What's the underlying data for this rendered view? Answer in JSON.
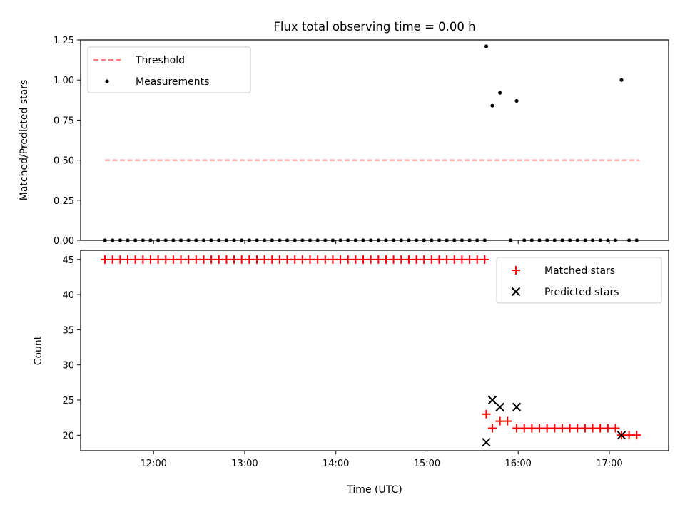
{
  "chart_data": [
    {
      "type": "scatter",
      "title": "Flux total observing time = 0.00 h",
      "ylabel": "Matched/Predicted stars",
      "xlabel": "",
      "xlim": [
        "11:12",
        "17:39"
      ],
      "ylim": [
        0,
        1.25
      ],
      "x_ticks": [
        "12:00",
        "13:00",
        "14:00",
        "15:00",
        "16:00",
        "17:00"
      ],
      "y_ticks": [
        "0.00",
        "0.25",
        "0.50",
        "0.75",
        "1.00",
        "1.25"
      ],
      "grid": false,
      "legend_position": "upper-left",
      "series": [
        {
          "name": "Threshold",
          "kind": "dashed-line",
          "color": "#ff7f7f",
          "x": [
            "11:28",
            "17:20"
          ],
          "y": [
            0.5,
            0.5
          ]
        },
        {
          "name": "Measurements",
          "kind": "points",
          "color": "#000000",
          "x": [
            "11:28",
            "11:33",
            "11:38",
            "11:43",
            "11:48",
            "11:53",
            "11:58",
            "12:03",
            "12:08",
            "12:13",
            "12:18",
            "12:23",
            "12:28",
            "12:33",
            "12:38",
            "12:43",
            "12:48",
            "12:53",
            "12:58",
            "13:03",
            "13:08",
            "13:13",
            "13:18",
            "13:23",
            "13:28",
            "13:33",
            "13:38",
            "13:43",
            "13:48",
            "13:53",
            "13:58",
            "14:03",
            "14:08",
            "14:13",
            "14:18",
            "14:23",
            "14:28",
            "14:33",
            "14:38",
            "14:43",
            "14:48",
            "14:53",
            "14:58",
            "15:03",
            "15:08",
            "15:13",
            "15:18",
            "15:23",
            "15:28",
            "15:33",
            "15:38",
            "15:39",
            "15:43",
            "15:48",
            "15:55",
            "15:59",
            "16:04",
            "16:09",
            "16:14",
            "16:19",
            "16:24",
            "16:29",
            "16:34",
            "16:39",
            "16:44",
            "16:49",
            "16:54",
            "16:59",
            "17:04",
            "17:08",
            "17:13",
            "17:18"
          ],
          "y": [
            0,
            0,
            0,
            0,
            0,
            0,
            0,
            0,
            0,
            0,
            0,
            0,
            0,
            0,
            0,
            0,
            0,
            0,
            0,
            0,
            0,
            0,
            0,
            0,
            0,
            0,
            0,
            0,
            0,
            0,
            0,
            0,
            0,
            0,
            0,
            0,
            0,
            0,
            0,
            0,
            0,
            0,
            0,
            0,
            0,
            0,
            0,
            0,
            0,
            0,
            0,
            1.21,
            0.84,
            0.92,
            0,
            0.87,
            0,
            0,
            0,
            0,
            0,
            0,
            0,
            0,
            0,
            0,
            0,
            0,
            0,
            1.0,
            0,
            0
          ]
        }
      ]
    },
    {
      "type": "scatter",
      "title": "",
      "xlabel": "Time (UTC)",
      "ylabel": "Count",
      "xlim": [
        "11:12",
        "17:39"
      ],
      "ylim": [
        17.8,
        46.3
      ],
      "x_ticks": [
        "12:00",
        "13:00",
        "14:00",
        "15:00",
        "16:00",
        "17:00"
      ],
      "y_ticks": [
        "20",
        "25",
        "30",
        "35",
        "40",
        "45"
      ],
      "grid": false,
      "legend_position": "upper-right",
      "series": [
        {
          "name": "Matched stars",
          "kind": "plus",
          "color": "#ff0000",
          "x": [
            "11:28",
            "11:33",
            "11:38",
            "11:43",
            "11:48",
            "11:53",
            "11:58",
            "12:03",
            "12:08",
            "12:13",
            "12:18",
            "12:23",
            "12:28",
            "12:33",
            "12:38",
            "12:43",
            "12:48",
            "12:53",
            "12:58",
            "13:03",
            "13:08",
            "13:13",
            "13:18",
            "13:23",
            "13:28",
            "13:33",
            "13:38",
            "13:43",
            "13:48",
            "13:53",
            "13:58",
            "14:03",
            "14:08",
            "14:13",
            "14:18",
            "14:23",
            "14:28",
            "14:33",
            "14:38",
            "14:43",
            "14:48",
            "14:53",
            "14:58",
            "15:03",
            "15:08",
            "15:13",
            "15:18",
            "15:23",
            "15:28",
            "15:33",
            "15:38",
            "15:39",
            "15:43",
            "15:48",
            "15:53",
            "15:59",
            "16:04",
            "16:09",
            "16:14",
            "16:19",
            "16:24",
            "16:29",
            "16:34",
            "16:39",
            "16:44",
            "16:49",
            "16:54",
            "16:59",
            "17:04",
            "17:08",
            "17:13",
            "17:18"
          ],
          "y": [
            45,
            45,
            45,
            45,
            45,
            45,
            45,
            45,
            45,
            45,
            45,
            45,
            45,
            45,
            45,
            45,
            45,
            45,
            45,
            45,
            45,
            45,
            45,
            45,
            45,
            45,
            45,
            45,
            45,
            45,
            45,
            45,
            45,
            45,
            45,
            45,
            45,
            45,
            45,
            45,
            45,
            45,
            45,
            45,
            45,
            45,
            45,
            45,
            45,
            45,
            45,
            23,
            21,
            22,
            22,
            21,
            21,
            21,
            21,
            21,
            21,
            21,
            21,
            21,
            21,
            21,
            21,
            21,
            21,
            20,
            20,
            20
          ]
        },
        {
          "name": "Predicted stars",
          "kind": "x",
          "color": "#000000",
          "x": [
            "15:39",
            "15:43",
            "15:48",
            "15:59",
            "17:08"
          ],
          "y": [
            19,
            25,
            24,
            24,
            20
          ]
        }
      ]
    }
  ]
}
